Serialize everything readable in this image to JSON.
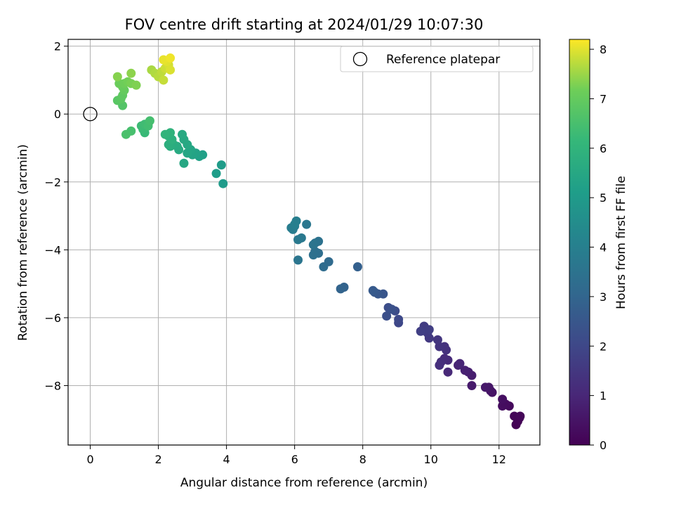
{
  "chart_data": {
    "type": "scatter",
    "title": "FOV centre drift starting at 2024/01/29 10:07:30",
    "xlabel": "Angular distance from reference (arcmin)",
    "ylabel": "Rotation from reference (arcmin)",
    "xlim": [
      -0.65,
      13.2
    ],
    "ylim": [
      -9.75,
      2.2
    ],
    "xticks": [
      0,
      2,
      4,
      6,
      8,
      10,
      12
    ],
    "yticks": [
      2,
      0,
      -2,
      -4,
      -6,
      -8
    ],
    "xtick_labels": [
      "0",
      "2",
      "4",
      "6",
      "8",
      "10",
      "12"
    ],
    "ytick_labels": [
      "2",
      "0",
      "−2",
      "−4",
      "−6",
      "−8"
    ],
    "grid": true,
    "legend": {
      "placement": "top-right",
      "label": "Reference platepar"
    },
    "reference_point": {
      "x": 0,
      "y": 0
    },
    "colorbar": {
      "label": "Hours from first FF file",
      "colormap": "viridis",
      "range": [
        0,
        8.2
      ],
      "ticks": [
        0,
        1,
        2,
        3,
        4,
        5,
        6,
        7,
        8
      ],
      "tick_labels": [
        "0",
        "1",
        "2",
        "3",
        "4",
        "5",
        "6",
        "7",
        "8"
      ]
    },
    "series": [
      {
        "points": [
          {
            "x": 12.5,
            "y": -9.15,
            "t": 0.0
          },
          {
            "x": 12.55,
            "y": -9.05,
            "t": 0.05
          },
          {
            "x": 12.6,
            "y": -8.95,
            "t": 0.08
          },
          {
            "x": 12.45,
            "y": -8.9,
            "t": 0.12
          },
          {
            "x": 12.62,
            "y": -8.9,
            "t": 0.15
          },
          {
            "x": 12.3,
            "y": -8.6,
            "t": 0.22
          },
          {
            "x": 12.2,
            "y": -8.55,
            "t": 0.28
          },
          {
            "x": 12.1,
            "y": -8.6,
            "t": 0.32
          },
          {
            "x": 12.1,
            "y": -8.4,
            "t": 0.38
          },
          {
            "x": 11.8,
            "y": -8.2,
            "t": 0.45
          },
          {
            "x": 11.75,
            "y": -8.15,
            "t": 0.5
          },
          {
            "x": 11.7,
            "y": -8.05,
            "t": 0.55
          },
          {
            "x": 11.6,
            "y": -8.05,
            "t": 0.6
          },
          {
            "x": 11.2,
            "y": -8.0,
            "t": 0.68
          },
          {
            "x": 11.2,
            "y": -7.7,
            "t": 0.75
          },
          {
            "x": 11.1,
            "y": -7.6,
            "t": 0.8
          },
          {
            "x": 11.0,
            "y": -7.55,
            "t": 0.85
          },
          {
            "x": 10.8,
            "y": -7.4,
            "t": 0.92
          },
          {
            "x": 10.85,
            "y": -7.35,
            "t": 0.98
          },
          {
            "x": 10.5,
            "y": -7.6,
            "t": 1.05
          },
          {
            "x": 10.5,
            "y": -7.25,
            "t": 1.1
          },
          {
            "x": 10.4,
            "y": -7.2,
            "t": 1.15
          },
          {
            "x": 10.3,
            "y": -7.3,
            "t": 1.2
          },
          {
            "x": 10.25,
            "y": -7.4,
            "t": 1.25
          },
          {
            "x": 10.45,
            "y": -6.95,
            "t": 1.3
          },
          {
            "x": 10.4,
            "y": -6.85,
            "t": 1.35
          },
          {
            "x": 10.25,
            "y": -6.85,
            "t": 1.4
          },
          {
            "x": 10.2,
            "y": -6.65,
            "t": 1.45
          },
          {
            "x": 9.95,
            "y": -6.6,
            "t": 1.55
          },
          {
            "x": 9.9,
            "y": -6.45,
            "t": 1.6
          },
          {
            "x": 9.8,
            "y": -6.25,
            "t": 1.65
          },
          {
            "x": 9.95,
            "y": -6.35,
            "t": 1.7
          },
          {
            "x": 9.7,
            "y": -6.4,
            "t": 1.75
          },
          {
            "x": 9.05,
            "y": -6.15,
            "t": 2.0
          },
          {
            "x": 9.05,
            "y": -6.05,
            "t": 2.05
          },
          {
            "x": 8.95,
            "y": -5.8,
            "t": 2.15
          },
          {
            "x": 8.75,
            "y": -5.7,
            "t": 2.2
          },
          {
            "x": 8.7,
            "y": -5.95,
            "t": 2.25
          },
          {
            "x": 8.85,
            "y": -5.75,
            "t": 2.3
          },
          {
            "x": 8.6,
            "y": -5.3,
            "t": 2.45
          },
          {
            "x": 8.45,
            "y": -5.3,
            "t": 2.5
          },
          {
            "x": 8.35,
            "y": -5.25,
            "t": 2.55
          },
          {
            "x": 8.3,
            "y": -5.2,
            "t": 2.6
          },
          {
            "x": 7.85,
            "y": -4.5,
            "t": 2.8
          },
          {
            "x": 7.45,
            "y": -5.1,
            "t": 2.9
          },
          {
            "x": 7.35,
            "y": -5.15,
            "t": 2.95
          },
          {
            "x": 7.0,
            "y": -4.35,
            "t": 3.2
          },
          {
            "x": 6.85,
            "y": -4.5,
            "t": 3.25
          },
          {
            "x": 6.7,
            "y": -4.1,
            "t": 3.3
          },
          {
            "x": 6.6,
            "y": -4.05,
            "t": 3.35
          },
          {
            "x": 6.55,
            "y": -4.15,
            "t": 3.4
          },
          {
            "x": 6.7,
            "y": -3.75,
            "t": 3.45
          },
          {
            "x": 6.6,
            "y": -3.8,
            "t": 3.5
          },
          {
            "x": 6.55,
            "y": -3.85,
            "t": 3.55
          },
          {
            "x": 6.1,
            "y": -4.3,
            "t": 3.6
          },
          {
            "x": 6.35,
            "y": -3.25,
            "t": 3.65
          },
          {
            "x": 6.2,
            "y": -3.65,
            "t": 3.7
          },
          {
            "x": 6.1,
            "y": -3.7,
            "t": 3.75
          },
          {
            "x": 6.0,
            "y": -3.3,
            "t": 3.8
          },
          {
            "x": 5.95,
            "y": -3.4,
            "t": 3.85
          },
          {
            "x": 5.9,
            "y": -3.35,
            "t": 3.9
          },
          {
            "x": 6.05,
            "y": -3.15,
            "t": 3.95
          },
          {
            "x": 6.0,
            "y": -3.25,
            "t": 4.0
          },
          {
            "x": 3.9,
            "y": -2.05,
            "t": 5.0
          },
          {
            "x": 3.85,
            "y": -1.5,
            "t": 5.05
          },
          {
            "x": 3.7,
            "y": -1.75,
            "t": 5.1
          },
          {
            "x": 3.3,
            "y": -1.2,
            "t": 5.2
          },
          {
            "x": 3.2,
            "y": -1.25,
            "t": 5.25
          },
          {
            "x": 3.1,
            "y": -1.15,
            "t": 5.3
          },
          {
            "x": 3.0,
            "y": -1.2,
            "t": 5.35
          },
          {
            "x": 2.95,
            "y": -1.05,
            "t": 5.4
          },
          {
            "x": 2.85,
            "y": -1.15,
            "t": 5.45
          },
          {
            "x": 2.75,
            "y": -1.45,
            "t": 5.5
          },
          {
            "x": 2.85,
            "y": -0.9,
            "t": 5.52
          },
          {
            "x": 2.75,
            "y": -0.75,
            "t": 5.55
          },
          {
            "x": 2.7,
            "y": -0.6,
            "t": 5.58
          },
          {
            "x": 2.6,
            "y": -1.05,
            "t": 5.6
          },
          {
            "x": 2.55,
            "y": -0.95,
            "t": 5.65
          },
          {
            "x": 2.45,
            "y": -0.9,
            "t": 5.7
          },
          {
            "x": 2.35,
            "y": -0.95,
            "t": 5.75
          },
          {
            "x": 2.3,
            "y": -0.9,
            "t": 5.8
          },
          {
            "x": 2.4,
            "y": -0.75,
            "t": 5.85
          },
          {
            "x": 2.3,
            "y": -0.65,
            "t": 5.9
          },
          {
            "x": 2.35,
            "y": -0.55,
            "t": 5.95
          },
          {
            "x": 2.2,
            "y": -0.6,
            "t": 6.0
          },
          {
            "x": 1.6,
            "y": -0.55,
            "t": 6.2
          },
          {
            "x": 1.55,
            "y": -0.45,
            "t": 6.25
          },
          {
            "x": 1.5,
            "y": -0.35,
            "t": 6.3
          },
          {
            "x": 1.6,
            "y": -0.3,
            "t": 6.35
          },
          {
            "x": 1.7,
            "y": -0.35,
            "t": 6.4
          },
          {
            "x": 1.75,
            "y": -0.2,
            "t": 6.45
          },
          {
            "x": 1.2,
            "y": -0.5,
            "t": 6.5
          },
          {
            "x": 1.05,
            "y": -0.6,
            "t": 6.55
          },
          {
            "x": 0.95,
            "y": 0.25,
            "t": 6.7
          },
          {
            "x": 0.8,
            "y": 0.4,
            "t": 6.8
          },
          {
            "x": 0.9,
            "y": 0.45,
            "t": 6.85
          },
          {
            "x": 0.95,
            "y": 0.55,
            "t": 6.9
          },
          {
            "x": 1.0,
            "y": 0.7,
            "t": 7.0
          },
          {
            "x": 0.95,
            "y": 0.8,
            "t": 7.05
          },
          {
            "x": 0.85,
            "y": 0.9,
            "t": 7.1
          },
          {
            "x": 1.0,
            "y": 0.9,
            "t": 7.15
          },
          {
            "x": 1.1,
            "y": 0.95,
            "t": 7.2
          },
          {
            "x": 1.2,
            "y": 0.9,
            "t": 7.25
          },
          {
            "x": 1.35,
            "y": 0.85,
            "t": 7.3
          },
          {
            "x": 0.8,
            "y": 1.1,
            "t": 7.35
          },
          {
            "x": 1.2,
            "y": 1.2,
            "t": 7.4
          },
          {
            "x": 1.8,
            "y": 1.3,
            "t": 7.6
          },
          {
            "x": 1.9,
            "y": 1.2,
            "t": 7.65
          },
          {
            "x": 2.0,
            "y": 1.1,
            "t": 7.7
          },
          {
            "x": 2.1,
            "y": 1.25,
            "t": 7.75
          },
          {
            "x": 2.15,
            "y": 1.0,
            "t": 7.8
          },
          {
            "x": 2.2,
            "y": 1.35,
            "t": 7.85
          },
          {
            "x": 2.3,
            "y": 1.45,
            "t": 7.9
          },
          {
            "x": 2.35,
            "y": 1.3,
            "t": 7.95
          },
          {
            "x": 2.25,
            "y": 1.55,
            "t": 8.0
          },
          {
            "x": 2.15,
            "y": 1.6,
            "t": 8.05
          },
          {
            "x": 2.35,
            "y": 1.65,
            "t": 8.1
          }
        ]
      }
    ]
  }
}
